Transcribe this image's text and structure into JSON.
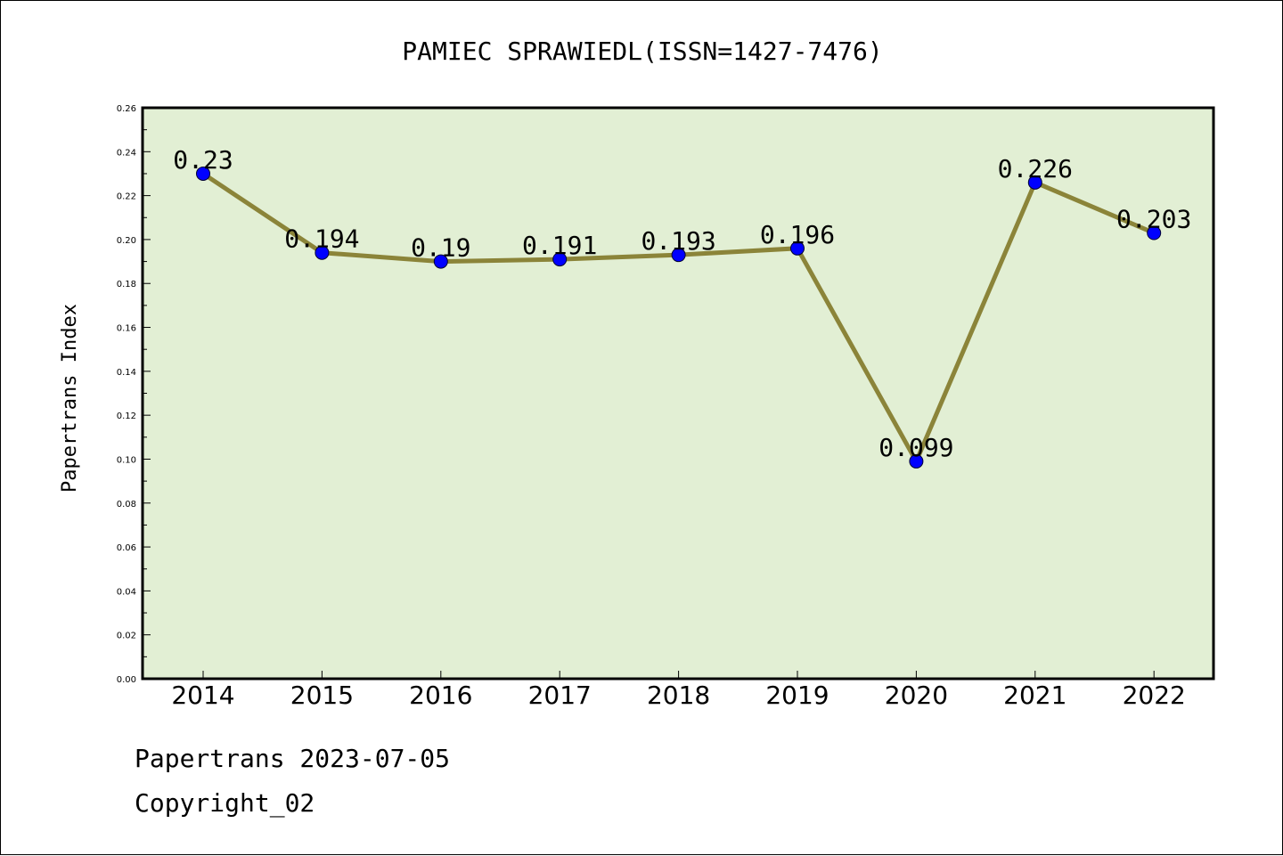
{
  "chart_data": {
    "type": "line",
    "title": "PAMIEC SPRAWIEDL(ISSN=1427-7476)",
    "xlabel": "",
    "ylabel": "Papertrans Index",
    "categories": [
      "2014",
      "2015",
      "2016",
      "2017",
      "2018",
      "2019",
      "2020",
      "2021",
      "2022"
    ],
    "values": [
      0.23,
      0.194,
      0.19,
      0.191,
      0.193,
      0.196,
      0.099,
      0.226,
      0.203
    ],
    "data_labels": [
      "0.23",
      "0.194",
      "0.19",
      "0.191",
      "0.193",
      "0.196",
      "0.099",
      "0.226",
      "0.203"
    ],
    "ylim": [
      0,
      0.26
    ],
    "yticks": [
      "0.00",
      "0.02",
      "0.04",
      "0.06",
      "0.08",
      "0.10",
      "0.12",
      "0.14",
      "0.16",
      "0.18",
      "0.20",
      "0.22",
      "0.24",
      "0.26"
    ],
    "grid": false,
    "legend": "none",
    "colors": {
      "plot_background": "#e2efd4",
      "line": "#8b8439",
      "marker": "#0000ff"
    }
  },
  "footer": {
    "line1": "Papertrans 2023-07-05",
    "line2": "Copyright_02"
  }
}
